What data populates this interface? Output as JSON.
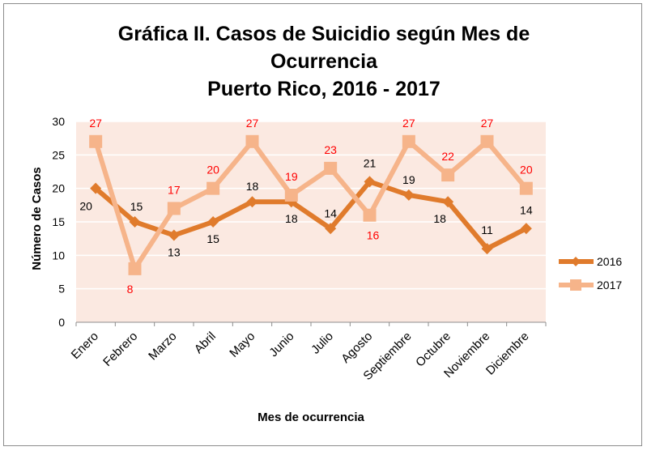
{
  "chart_data": {
    "type": "line",
    "title_lines": [
      "Gráfica II. Casos de Suicidio según Mes de",
      "Ocurrencia",
      "Puerto Rico, 2016 - 2017"
    ],
    "xlabel": "Mes de ocurrencia",
    "ylabel": "Número de Casos",
    "ylim": [
      0,
      30
    ],
    "yticks": [
      "0",
      "5",
      "10",
      "15",
      "20",
      "25",
      "30"
    ],
    "categories": [
      "Enero",
      "Febrero",
      "Marzo",
      "Abril",
      "Mayo",
      "Junio",
      "Julio",
      "Agosto",
      "Septiembre",
      "Octubre",
      "Noviembre",
      "Diciembre"
    ],
    "series": [
      {
        "name": "2016",
        "values": [
          20,
          15,
          13,
          15,
          18,
          18,
          14,
          21,
          19,
          18,
          11,
          14
        ],
        "labels": [
          "20",
          "15",
          "13",
          "15",
          "18",
          "18",
          "14",
          "21",
          "19",
          "18",
          "11",
          "14"
        ],
        "line_color": "#E07B2C",
        "label_color": "#000000",
        "marker": "diamond"
      },
      {
        "name": "2017",
        "values": [
          27,
          8,
          17,
          20,
          27,
          19,
          23,
          16,
          27,
          22,
          27,
          20
        ],
        "labels": [
          "27",
          "8",
          "17",
          "20",
          "27",
          "19",
          "23",
          "16",
          "27",
          "22",
          "27",
          "20"
        ],
        "line_color": "#F6B48A",
        "label_color": "#FF0000",
        "marker": "square"
      }
    ],
    "legend_position": "right",
    "plot_background": "#FBE9E1",
    "grid": true
  }
}
